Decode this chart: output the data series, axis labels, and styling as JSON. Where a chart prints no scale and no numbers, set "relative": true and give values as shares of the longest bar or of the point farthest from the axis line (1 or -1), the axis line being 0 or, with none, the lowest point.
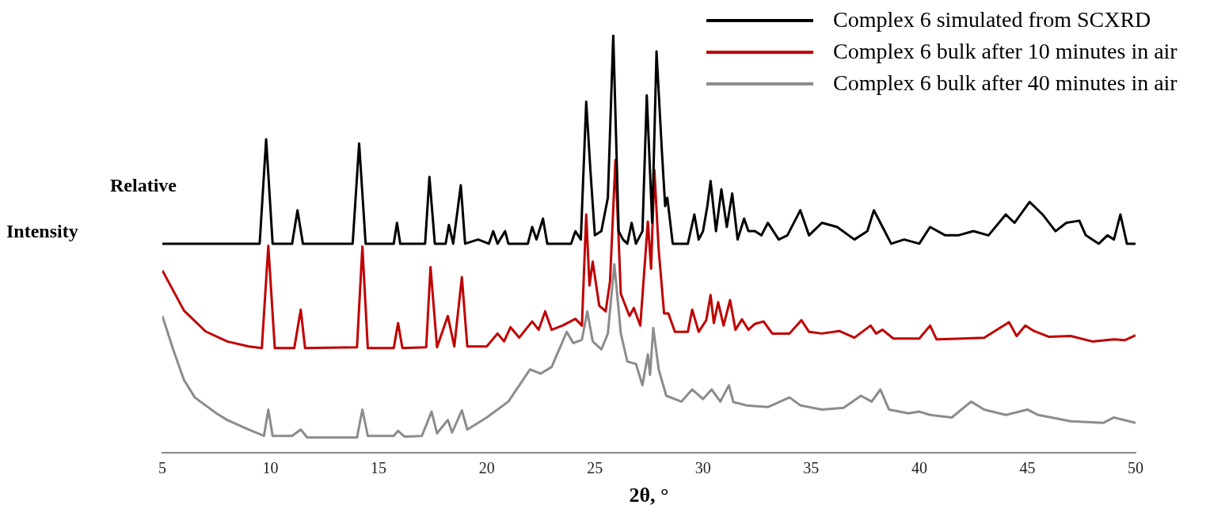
{
  "chart_data": {
    "type": "line",
    "xlabel": "2θ, °",
    "ylabel": "Relative Intensity",
    "relative": true,
    "legend": "top right",
    "grid": false,
    "marker": "none",
    "line_style": "solid",
    "xlim": [
      5,
      50
    ],
    "xticks": [
      5,
      10,
      15,
      20,
      25,
      30,
      35,
      40,
      45,
      50
    ],
    "series": [
      {
        "name": "Complex 6 simulated from SCXRD",
        "color": "#000000",
        "x": [
          5,
          9.5,
          9.8,
          10.1,
          11.0,
          11.25,
          11.5,
          13.8,
          14.1,
          14.4,
          15.7,
          15.85,
          16.0,
          17.15,
          17.35,
          17.6,
          18.1,
          18.25,
          18.45,
          18.8,
          19.0,
          19.6,
          20.1,
          20.3,
          20.5,
          20.85,
          21.0,
          21.9,
          22.1,
          22.3,
          22.6,
          22.8,
          23.9,
          24.1,
          24.35,
          24.6,
          24.8,
          25.0,
          25.3,
          25.6,
          25.85,
          26.1,
          26.3,
          26.5,
          26.7,
          26.9,
          27.2,
          27.4,
          27.65,
          27.85,
          28.1,
          28.25,
          28.35,
          28.6,
          29.3,
          29.6,
          29.8,
          30.0,
          30.2,
          30.35,
          30.6,
          30.85,
          31.1,
          31.35,
          31.6,
          31.9,
          32.1,
          32.4,
          32.7,
          33.0,
          33.5,
          33.9,
          34.5,
          34.9,
          35.5,
          36.2,
          37.0,
          37.6,
          37.9,
          38.3,
          38.7,
          39.3,
          40.0,
          40.5,
          41.2,
          41.8,
          42.5,
          43.2,
          44.0,
          44.4,
          45.1,
          45.7,
          46.3,
          46.8,
          47.4,
          47.7,
          48.3,
          48.7,
          49.0,
          49.3,
          49.6,
          50
        ],
        "values": [
          0.5,
          0.5,
          0.75,
          0.5,
          0.5,
          0.58,
          0.5,
          0.5,
          0.74,
          0.5,
          0.5,
          0.55,
          0.5,
          0.5,
          0.66,
          0.5,
          0.5,
          0.545,
          0.5,
          0.64,
          0.5,
          0.51,
          0.5,
          0.53,
          0.5,
          0.53,
          0.5,
          0.5,
          0.54,
          0.51,
          0.56,
          0.5,
          0.5,
          0.53,
          0.51,
          0.84,
          0.67,
          0.52,
          0.53,
          0.61,
          1.0,
          0.53,
          0.51,
          0.5,
          0.55,
          0.5,
          0.53,
          0.855,
          0.55,
          0.96,
          0.72,
          0.59,
          0.61,
          0.5,
          0.5,
          0.57,
          0.51,
          0.53,
          0.59,
          0.65,
          0.53,
          0.63,
          0.54,
          0.62,
          0.51,
          0.56,
          0.53,
          0.53,
          0.52,
          0.55,
          0.51,
          0.52,
          0.58,
          0.52,
          0.55,
          0.54,
          0.51,
          0.53,
          0.58,
          0.54,
          0.5,
          0.51,
          0.5,
          0.54,
          0.52,
          0.52,
          0.53,
          0.52,
          0.57,
          0.55,
          0.6,
          0.57,
          0.53,
          0.55,
          0.555,
          0.52,
          0.5,
          0.52,
          0.51,
          0.57,
          0.5,
          0.5
        ]
      },
      {
        "name": "Complex 6 bulk after 10 minutes in air",
        "color": "#c00000",
        "x": [
          5,
          6,
          7,
          8,
          9,
          9.6,
          9.9,
          10.2,
          11.1,
          11.4,
          11.6,
          14.0,
          14.25,
          14.5,
          15.7,
          15.9,
          16.1,
          17.2,
          17.4,
          17.7,
          18.2,
          18.5,
          18.85,
          19.1,
          20.0,
          20.5,
          20.8,
          21.1,
          21.5,
          22.1,
          22.4,
          22.7,
          23.0,
          23.5,
          24.1,
          24.4,
          24.6,
          24.75,
          24.9,
          25.2,
          25.5,
          25.7,
          25.95,
          26.2,
          26.6,
          26.8,
          27.1,
          27.45,
          27.6,
          27.75,
          27.95,
          28.2,
          28.4,
          28.7,
          29.3,
          29.5,
          29.8,
          30.15,
          30.35,
          30.5,
          30.7,
          30.95,
          31.25,
          31.5,
          31.8,
          32.1,
          32.4,
          32.8,
          33.2,
          34.0,
          34.55,
          34.9,
          35.5,
          36.3,
          37.0,
          37.75,
          38.0,
          38.3,
          38.8,
          40.0,
          40.5,
          40.8,
          42.0,
          43.0,
          44.15,
          44.5,
          44.9,
          45.3,
          46.0,
          47.0,
          48.0,
          49.0,
          49.5,
          50
        ],
        "values": [
          0.436,
          0.34,
          0.29,
          0.266,
          0.254,
          0.25,
          0.495,
          0.25,
          0.25,
          0.342,
          0.25,
          0.252,
          0.493,
          0.25,
          0.25,
          0.31,
          0.25,
          0.252,
          0.444,
          0.252,
          0.327,
          0.254,
          0.42,
          0.254,
          0.254,
          0.285,
          0.266,
          0.3,
          0.275,
          0.314,
          0.294,
          0.338,
          0.294,
          0.304,
          0.32,
          0.304,
          0.57,
          0.4,
          0.457,
          0.352,
          0.338,
          0.41,
          0.7,
          0.38,
          0.327,
          0.346,
          0.304,
          0.553,
          0.44,
          0.677,
          0.486,
          0.333,
          0.333,
          0.289,
          0.289,
          0.342,
          0.289,
          0.317,
          0.377,
          0.31,
          0.36,
          0.304,
          0.365,
          0.294,
          0.319,
          0.294,
          0.308,
          0.314,
          0.285,
          0.285,
          0.317,
          0.289,
          0.285,
          0.291,
          0.275,
          0.304,
          0.285,
          0.294,
          0.273,
          0.273,
          0.304,
          0.271,
          0.273,
          0.275,
          0.312,
          0.279,
          0.304,
          0.291,
          0.277,
          0.279,
          0.266,
          0.271,
          0.269,
          0.281
        ]
      },
      {
        "name": "Complex 6 bulk after 40 minutes in air",
        "color": "#8c8c8c",
        "x": [
          5,
          5.5,
          6,
          6.5,
          7,
          7.5,
          8,
          9,
          9.7,
          9.9,
          10.1,
          11.0,
          11.4,
          11.7,
          13.0,
          14.0,
          14.25,
          14.5,
          15.7,
          15.9,
          16.2,
          17.0,
          17.45,
          17.7,
          18.2,
          18.4,
          18.85,
          19.1,
          20.0,
          21.0,
          22.0,
          22.5,
          23.0,
          23.7,
          24.0,
          24.4,
          24.65,
          24.9,
          25.3,
          25.6,
          25.9,
          26.2,
          26.5,
          26.9,
          27.2,
          27.45,
          27.55,
          27.7,
          27.95,
          28.3,
          29.0,
          29.5,
          30.0,
          30.4,
          30.8,
          31.2,
          31.4,
          32.0,
          33.0,
          34.0,
          34.5,
          35.5,
          36.5,
          37.3,
          37.8,
          38.2,
          38.6,
          39.5,
          40.0,
          40.5,
          41.5,
          42.4,
          43.0,
          44.0,
          45.0,
          45.5,
          47.0,
          48.5,
          49.0,
          50
        ],
        "values": [
          0.327,
          0.247,
          0.174,
          0.132,
          0.113,
          0.094,
          0.078,
          0.055,
          0.04,
          0.103,
          0.04,
          0.04,
          0.055,
          0.036,
          0.036,
          0.036,
          0.103,
          0.04,
          0.04,
          0.052,
          0.038,
          0.04,
          0.098,
          0.046,
          0.078,
          0.048,
          0.101,
          0.055,
          0.084,
          0.122,
          0.199,
          0.189,
          0.205,
          0.289,
          0.262,
          0.27,
          0.338,
          0.266,
          0.247,
          0.285,
          0.451,
          0.285,
          0.218,
          0.212,
          0.161,
          0.235,
          0.186,
          0.298,
          0.199,
          0.136,
          0.122,
          0.151,
          0.128,
          0.151,
          0.122,
          0.161,
          0.121,
          0.113,
          0.109,
          0.132,
          0.113,
          0.103,
          0.107,
          0.136,
          0.122,
          0.151,
          0.103,
          0.094,
          0.098,
          0.09,
          0.084,
          0.122,
          0.103,
          0.09,
          0.103,
          0.09,
          0.075,
          0.071,
          0.084,
          0.071
        ]
      }
    ]
  }
}
